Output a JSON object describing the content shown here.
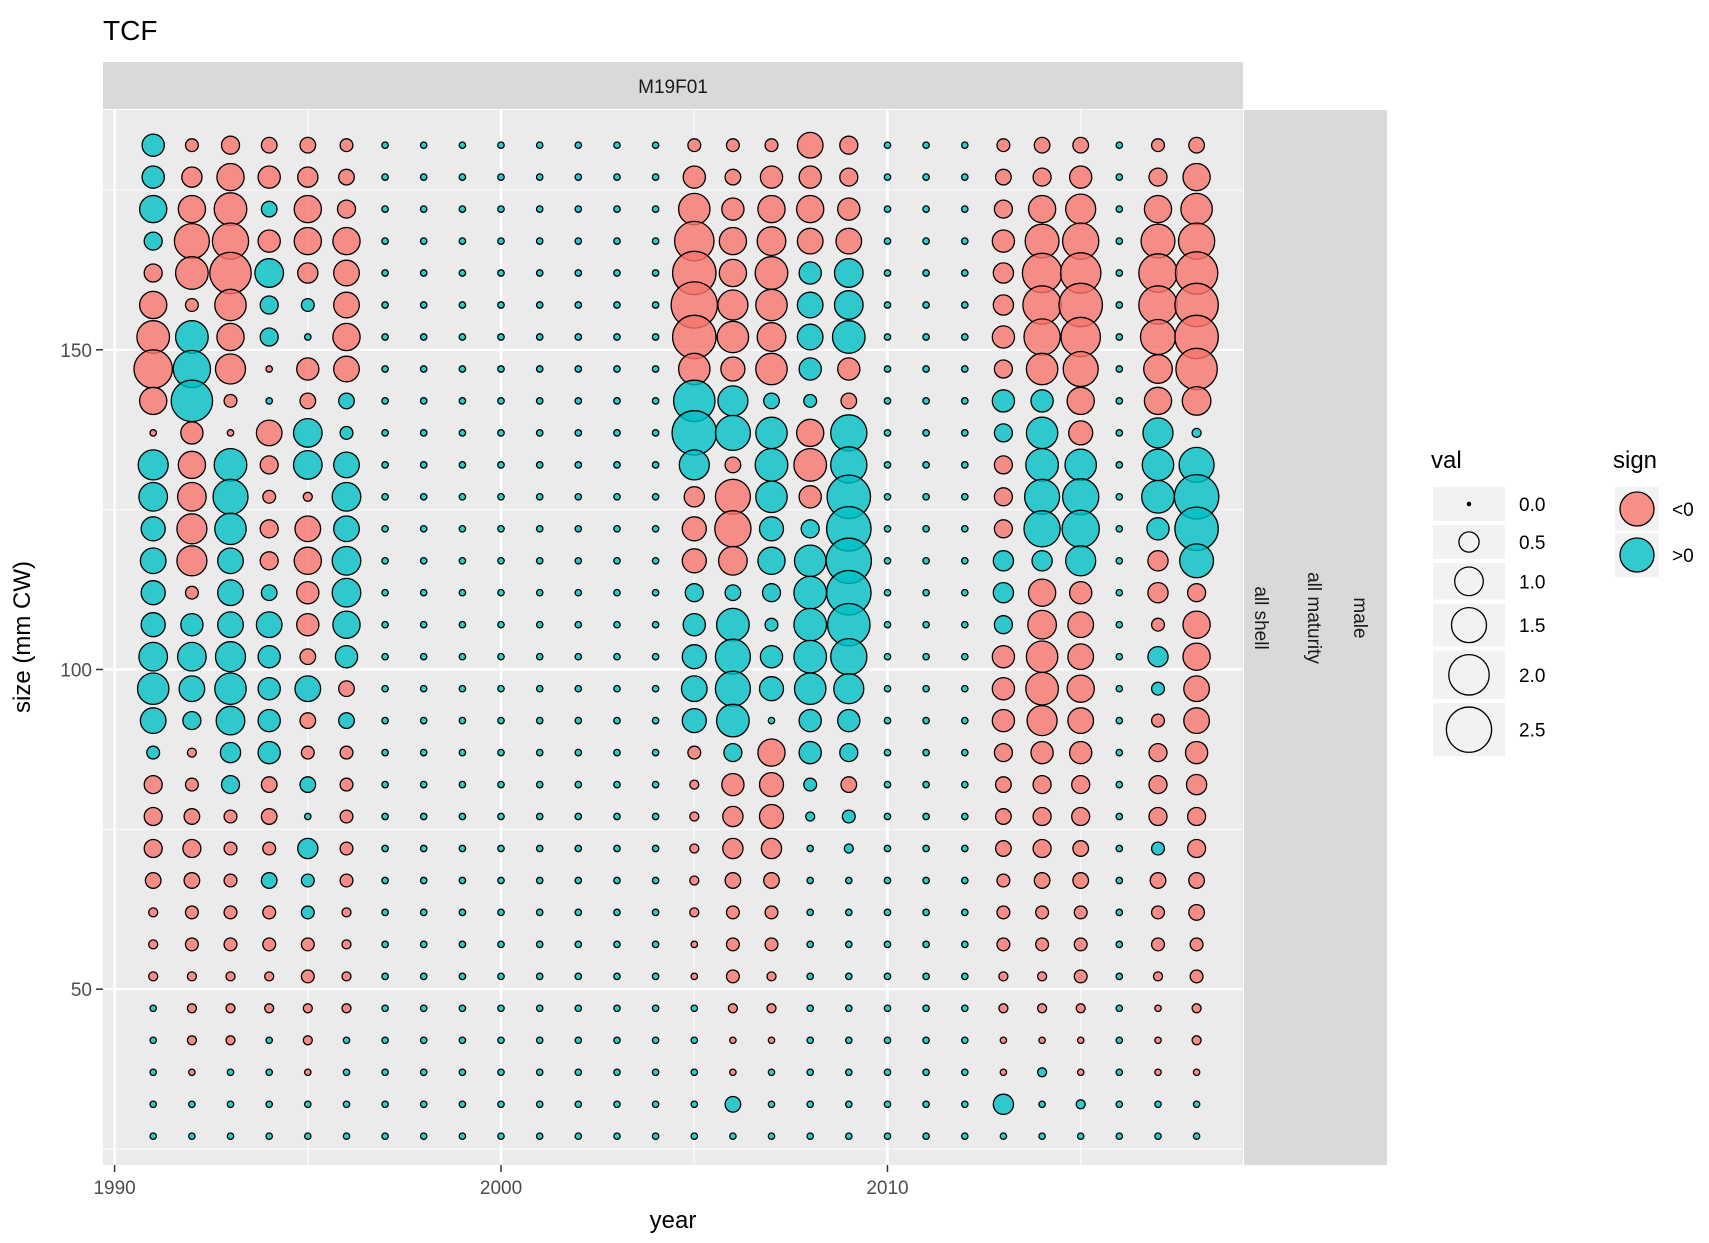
{
  "chart_data": {
    "type": "scatter",
    "title": "TCF",
    "facet_label_top": "M19F01",
    "facet_labels_right": [
      "male",
      "all maturity",
      "all shell"
    ],
    "xlabel": "year",
    "ylabel": "size (mm CW)",
    "xlim": [
      1989.7,
      2019.2
    ],
    "ylim": [
      22.5,
      187.5
    ],
    "x_ticks": [
      1990,
      2000,
      2010
    ],
    "y_ticks": [
      50,
      100,
      150
    ],
    "grid": true,
    "years": [
      1991,
      1992,
      1993,
      1994,
      1995,
      1996,
      1997,
      1998,
      1999,
      2000,
      2001,
      2002,
      2003,
      2004,
      2005,
      2006,
      2007,
      2008,
      2009,
      2010,
      2011,
      2012,
      2013,
      2014,
      2015,
      2016,
      2017,
      2018
    ],
    "sizes": [
      182,
      177,
      172,
      167,
      162,
      157,
      152,
      147,
      142,
      137,
      132,
      127,
      122,
      117,
      112,
      107,
      102,
      97,
      92,
      87,
      82,
      77,
      72,
      67,
      62,
      57,
      52,
      47,
      42,
      37,
      32,
      27
    ],
    "values_note": "values[i][j] = signed residual for years[i] (columns) and sizes[j] (rows, 182 down to 27)",
    "values": [
      [
        0.6,
        0.6,
        0.9,
        0.4,
        -0.4,
        -0.9,
        -1.3,
        -1.8,
        -0.9,
        -0.05,
        1.1,
        1.0,
        0.7,
        0.8,
        0.7,
        0.7,
        1.0,
        1.2,
        0.8,
        0.2,
        -0.4,
        -0.4,
        -0.4,
        -0.3,
        -0.1,
        -0.1,
        -0.1,
        0.05,
        0.05,
        0.05,
        0.05,
        0.05
      ],
      [
        -0.2,
        -0.5,
        -0.9,
        -1.5,
        -1.3,
        -0.2,
        1.3,
        1.7,
        2.1,
        -0.6,
        -0.9,
        -1.0,
        -1.1,
        -1.1,
        -0.2,
        0.6,
        1.0,
        0.8,
        0.4,
        -0.1,
        -0.2,
        -0.3,
        -0.4,
        -0.3,
        -0.2,
        -0.2,
        -0.1,
        -0.1,
        -0.1,
        -0.05,
        0.05,
        0.05
      ],
      [
        -0.4,
        -0.9,
        -1.3,
        -1.6,
        -2.1,
        -1.2,
        -0.9,
        -1.1,
        -0.2,
        -0.05,
        1.3,
        1.5,
        1.2,
        0.8,
        0.8,
        0.8,
        1.1,
        1.2,
        1.0,
        0.5,
        0.4,
        -0.2,
        -0.2,
        -0.2,
        -0.2,
        -0.2,
        -0.1,
        -0.1,
        -0.1,
        0.05,
        0.05,
        0.05
      ],
      [
        -0.3,
        -0.6,
        0.3,
        -0.6,
        1.0,
        0.4,
        0.4,
        -0.05,
        0.05,
        -0.8,
        -0.4,
        -0.2,
        -0.4,
        -0.4,
        0.3,
        0.8,
        0.6,
        0.6,
        0.6,
        0.6,
        -0.3,
        -0.3,
        -0.2,
        0.3,
        -0.2,
        -0.2,
        -0.1,
        -0.1,
        0.05,
        0.05,
        0.05,
        0.05
      ],
      [
        -0.3,
        -0.5,
        -0.9,
        -0.9,
        -0.5,
        0.2,
        0.05,
        -0.6,
        -0.3,
        1.0,
        1.0,
        -0.1,
        -0.8,
        -0.9,
        -0.6,
        -0.6,
        -0.3,
        0.8,
        -0.3,
        -0.2,
        0.3,
        0.05,
        0.5,
        0.2,
        0.2,
        -0.2,
        -0.2,
        -0.1,
        -0.1,
        -0.05,
        0.05,
        0.05
      ],
      [
        -0.2,
        -0.3,
        -0.4,
        -0.9,
        -0.8,
        -0.8,
        -0.9,
        -0.8,
        0.3,
        0.2,
        0.8,
        1.0,
        0.8,
        1.0,
        1.0,
        0.9,
        0.6,
        -0.3,
        0.3,
        -0.2,
        -0.2,
        -0.2,
        -0.2,
        -0.2,
        -0.1,
        -0.1,
        -0.1,
        -0.1,
        0.05,
        0.05,
        0.05,
        0.05
      ],
      [
        0.05,
        0.05,
        0.05,
        0.05,
        0.05,
        0.05,
        0.05,
        0.05,
        0.05,
        0.05,
        0.05,
        0.05,
        0.05,
        0.05,
        0.05,
        0.05,
        0.05,
        0.05,
        0.05,
        0.05,
        0.05,
        0.05,
        0.05,
        0.05,
        0.05,
        0.05,
        0.05,
        0.05,
        0.05,
        0.05,
        0.05,
        0.05
      ],
      [
        0.05,
        0.05,
        0.05,
        0.05,
        0.05,
        0.05,
        0.05,
        0.05,
        0.05,
        0.05,
        0.05,
        0.05,
        0.05,
        0.05,
        0.05,
        0.05,
        0.05,
        0.05,
        0.05,
        0.05,
        0.05,
        0.05,
        0.05,
        0.05,
        0.05,
        0.05,
        0.05,
        0.05,
        0.05,
        0.05,
        0.05,
        0.05
      ],
      [
        0.05,
        0.05,
        0.05,
        0.05,
        0.05,
        0.05,
        0.05,
        0.05,
        0.05,
        0.05,
        0.05,
        0.05,
        0.05,
        0.05,
        0.05,
        0.05,
        0.05,
        0.05,
        0.05,
        0.05,
        0.05,
        0.05,
        0.05,
        0.05,
        0.05,
        0.05,
        0.05,
        0.05,
        0.05,
        0.05,
        0.05,
        0.05
      ],
      [
        0.05,
        0.05,
        0.05,
        0.05,
        0.05,
        0.05,
        0.05,
        0.05,
        0.05,
        0.05,
        0.05,
        0.05,
        0.05,
        0.05,
        0.05,
        0.05,
        0.05,
        0.05,
        0.05,
        0.05,
        0.05,
        0.05,
        0.05,
        0.05,
        0.05,
        0.05,
        0.05,
        0.05,
        0.05,
        0.05,
        0.05,
        0.05
      ],
      [
        0.05,
        0.05,
        0.05,
        0.05,
        0.05,
        0.05,
        0.05,
        0.05,
        0.05,
        0.05,
        0.05,
        0.05,
        0.05,
        0.05,
        0.05,
        0.05,
        0.05,
        0.05,
        0.05,
        0.05,
        0.05,
        0.05,
        0.05,
        0.05,
        0.05,
        0.05,
        0.05,
        0.05,
        0.05,
        0.05,
        0.05,
        0.05
      ],
      [
        0.05,
        0.05,
        0.05,
        0.05,
        0.05,
        0.05,
        0.05,
        0.05,
        0.05,
        0.05,
        0.05,
        0.05,
        0.05,
        0.05,
        0.05,
        0.05,
        0.05,
        0.05,
        0.05,
        0.05,
        0.05,
        0.05,
        0.05,
        0.05,
        0.05,
        0.05,
        0.05,
        0.05,
        0.05,
        0.05,
        0.05,
        0.05
      ],
      [
        0.05,
        0.05,
        0.05,
        0.05,
        0.05,
        0.05,
        0.05,
        0.05,
        0.05,
        0.05,
        0.05,
        0.05,
        0.05,
        0.05,
        0.05,
        0.05,
        0.05,
        0.05,
        0.05,
        0.05,
        0.05,
        0.05,
        0.05,
        0.05,
        0.05,
        0.05,
        0.05,
        0.05,
        0.05,
        0.05,
        0.05,
        0.05
      ],
      [
        0.05,
        0.05,
        0.05,
        0.05,
        0.05,
        0.05,
        0.05,
        0.05,
        0.05,
        0.05,
        0.05,
        0.05,
        0.05,
        0.05,
        0.05,
        0.05,
        0.05,
        0.05,
        0.05,
        0.05,
        0.05,
        0.05,
        0.05,
        0.05,
        0.05,
        0.05,
        0.05,
        0.05,
        0.05,
        0.05,
        0.05,
        0.05
      ],
      [
        -0.2,
        -0.6,
        -1.2,
        -1.9,
        -2.3,
        -2.6,
        -2.3,
        -1.2,
        2.1,
        2.4,
        1.1,
        -0.5,
        -0.7,
        -0.7,
        0.4,
        0.6,
        0.7,
        0.8,
        0.7,
        -0.2,
        -0.1,
        -0.1,
        -0.1,
        -0.1,
        -0.1,
        -0.05,
        -0.05,
        0.05,
        0.05,
        0.05,
        0.05,
        0.05
      ],
      [
        -0.2,
        -0.3,
        -0.6,
        -0.9,
        -0.9,
        -1.1,
        -1.2,
        -0.7,
        1.1,
        1.5,
        -0.3,
        -1.5,
        -1.6,
        -1.0,
        0.3,
        1.3,
        1.5,
        1.5,
        1.3,
        0.4,
        -0.6,
        -0.5,
        -0.5,
        -0.3,
        -0.2,
        -0.2,
        -0.2,
        -0.1,
        -0.05,
        -0.05,
        0.3,
        0.05
      ],
      [
        -0.2,
        -0.6,
        -0.9,
        -1.0,
        -1.3,
        -1.2,
        -1.0,
        -1.2,
        0.3,
        1.2,
        1.3,
        1.2,
        0.7,
        0.9,
        0.4,
        0.2,
        0.6,
        0.7,
        0.05,
        -0.9,
        -0.7,
        -0.7,
        -0.5,
        -0.3,
        -0.2,
        -0.2,
        -0.1,
        -0.1,
        -0.05,
        0.05,
        0.05,
        0.05
      ],
      [
        -0.8,
        -0.6,
        -0.9,
        -0.8,
        0.6,
        0.8,
        0.8,
        0.6,
        0.2,
        -0.9,
        -1.3,
        -0.6,
        0.4,
        1.2,
        1.3,
        1.3,
        1.3,
        1.2,
        0.6,
        0.6,
        0.2,
        0.1,
        0.05,
        0.05,
        0.05,
        0.05,
        0.05,
        0.05,
        0.05,
        0.05,
        0.05,
        0.05
      ],
      [
        -0.4,
        -0.4,
        -0.6,
        -0.8,
        1.0,
        1.0,
        1.3,
        -0.6,
        -0.3,
        1.6,
        1.6,
        2.3,
        2.4,
        2.5,
        2.4,
        2.2,
        1.6,
        1.1,
        0.6,
        0.4,
        -0.3,
        0.2,
        0.1,
        0.05,
        0.05,
        0.05,
        0.05,
        0.05,
        0.05,
        0.05,
        0.05,
        0.05
      ],
      [
        0.05,
        0.05,
        0.05,
        0.05,
        0.05,
        0.05,
        0.05,
        0.05,
        0.05,
        0.05,
        0.05,
        0.05,
        0.05,
        0.05,
        0.05,
        0.05,
        0.05,
        0.05,
        0.05,
        0.05,
        0.05,
        0.05,
        0.05,
        0.05,
        0.05,
        0.05,
        0.05,
        0.05,
        0.05,
        0.05,
        0.05,
        0.05
      ],
      [
        0.05,
        0.05,
        0.05,
        0.05,
        0.05,
        0.05,
        0.05,
        0.05,
        0.05,
        0.05,
        0.05,
        0.05,
        0.05,
        0.05,
        0.05,
        0.05,
        0.05,
        0.05,
        0.05,
        0.05,
        0.05,
        0.05,
        0.05,
        0.05,
        0.05,
        0.05,
        0.05,
        0.05,
        0.05,
        0.05,
        0.05,
        0.05
      ],
      [
        0.05,
        0.05,
        0.05,
        0.05,
        0.05,
        0.05,
        0.05,
        0.05,
        0.05,
        0.05,
        0.05,
        0.05,
        0.05,
        0.05,
        0.05,
        0.05,
        0.05,
        0.05,
        0.05,
        0.05,
        0.05,
        0.05,
        0.05,
        0.05,
        0.05,
        0.05,
        0.05,
        0.05,
        0.05,
        0.05,
        0.05,
        0.05
      ],
      [
        -0.2,
        -0.3,
        -0.4,
        -0.6,
        -0.5,
        -0.5,
        -0.6,
        -0.4,
        0.6,
        0.4,
        -0.4,
        -0.4,
        -0.4,
        0.5,
        0.5,
        0.4,
        -0.6,
        -0.6,
        -0.6,
        -0.4,
        -0.3,
        -0.3,
        -0.3,
        -0.2,
        -0.2,
        -0.2,
        -0.1,
        -0.1,
        -0.05,
        -0.05,
        0.5,
        0.05
      ],
      [
        -0.3,
        -0.4,
        -0.9,
        -1.4,
        -1.9,
        -1.8,
        -1.6,
        -1.2,
        0.6,
        1.2,
        1.3,
        1.5,
        1.6,
        0.5,
        -0.9,
        -1.0,
        -1.2,
        -1.3,
        -1.1,
        -0.6,
        -0.4,
        -0.4,
        -0.4,
        -0.3,
        -0.2,
        -0.2,
        -0.1,
        -0.1,
        -0.05,
        0.1,
        0.05,
        0.05
      ],
      [
        -0.3,
        -0.6,
        -1.1,
        -1.6,
        -2.0,
        -2.3,
        -1.9,
        -1.5,
        -0.9,
        -0.7,
        1.2,
        1.6,
        1.7,
        1.1,
        -0.6,
        -0.8,
        -0.8,
        -0.9,
        -0.8,
        -0.6,
        -0.4,
        -0.4,
        -0.3,
        -0.3,
        -0.2,
        -0.2,
        -0.2,
        -0.1,
        -0.05,
        -0.05,
        0.1,
        0.05
      ],
      [
        0.05,
        0.05,
        0.05,
        0.05,
        0.05,
        0.05,
        0.05,
        0.05,
        0.05,
        0.05,
        0.05,
        0.05,
        0.05,
        0.05,
        0.05,
        0.05,
        0.05,
        0.05,
        0.05,
        0.05,
        0.05,
        0.05,
        0.05,
        0.05,
        0.05,
        0.05,
        0.05,
        0.05,
        0.05,
        0.05,
        0.05,
        0.05
      ],
      [
        -0.2,
        -0.4,
        -0.9,
        -1.4,
        -1.8,
        -1.8,
        -1.5,
        -1.0,
        -0.9,
        1.1,
        1.2,
        1.3,
        0.6,
        -0.5,
        -0.5,
        -0.2,
        0.5,
        0.2,
        -0.2,
        -0.4,
        -0.4,
        -0.4,
        0.2,
        -0.3,
        -0.2,
        -0.2,
        -0.1,
        -0.05,
        -0.05,
        -0.05,
        0.05,
        0.05
      ],
      [
        -0.3,
        -0.9,
        -1.2,
        -1.6,
        -2.2,
        -2.3,
        -2.3,
        -2.1,
        -1.0,
        0.1,
        1.5,
        2.4,
        2.3,
        1.4,
        -0.4,
        -0.9,
        -0.9,
        -0.8,
        -0.8,
        -0.6,
        -0.5,
        -0.4,
        -0.4,
        -0.3,
        -0.3,
        -0.2,
        -0.2,
        -0.1,
        -0.1,
        -0.05,
        0.05,
        0.05
      ]
    ],
    "legend_size": {
      "title": "val",
      "labels": [
        "0.0",
        "0.5",
        "1.0",
        "1.5",
        "2.0",
        "2.5"
      ],
      "values": [
        0.0,
        0.5,
        1.0,
        1.5,
        2.0,
        2.5
      ]
    },
    "legend_sign": {
      "title": "sign",
      "entries": [
        {
          "label": "<0",
          "color": "#F8766D"
        },
        {
          "label": ">0",
          "color": "#00BFC4"
        }
      ]
    },
    "colors": {
      "negative": "#F8766D",
      "positive": "#00BFC4",
      "panel_bg": "#EBEBEB",
      "strip_bg": "#D9D9D9",
      "grid": "#FFFFFF"
    }
  }
}
